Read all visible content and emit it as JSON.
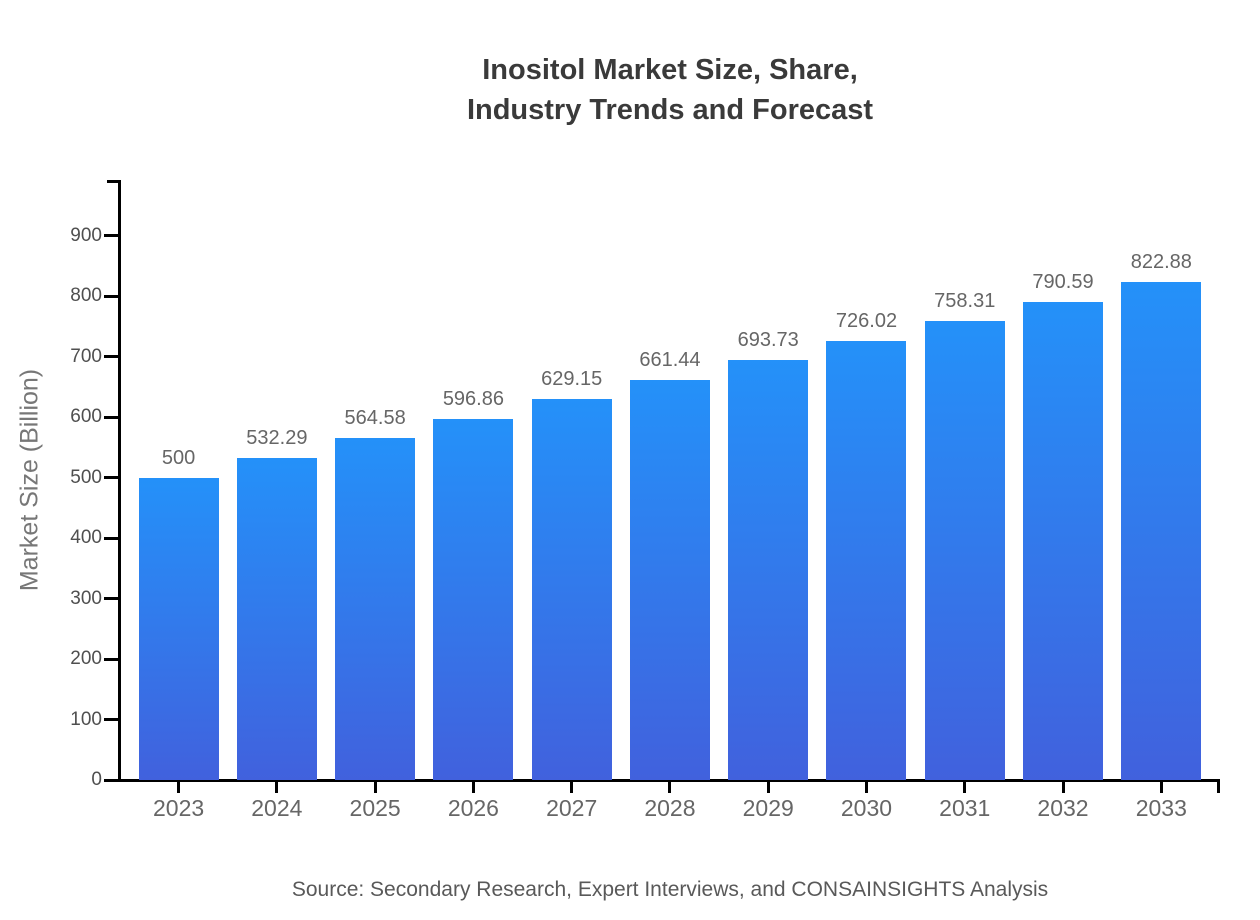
{
  "title": {
    "line1": "Inositol Market Size, Share,",
    "line2": "Industry Trends and Forecast"
  },
  "source_text": "Source: Secondary Research, Expert Interviews, and CONSAINSIGHTS Analysis",
  "colors": {
    "bar_gradient_top": "#2491f9",
    "bar_gradient_bottom": "#4161dd",
    "axis": "#000000",
    "title_text": "#3a3a3a",
    "y_tick_text": "#4f4f4f",
    "value_label_text": "#666666",
    "year_label_text": "#666666",
    "y_axis_title_text": "#777777",
    "source_text": "#595959"
  },
  "chart_data": {
    "type": "bar",
    "title": "Inositol Market Size, Share, Industry Trends and Forecast",
    "categories": [
      "2023",
      "2024",
      "2025",
      "2026",
      "2027",
      "2028",
      "2029",
      "2030",
      "2031",
      "2032",
      "2033"
    ],
    "values": [
      500,
      532.29,
      564.58,
      596.86,
      629.15,
      661.44,
      693.73,
      726.02,
      758.31,
      790.59,
      822.88
    ],
    "value_labels": [
      "500",
      "532.29",
      "564.58",
      "596.86",
      "629.15",
      "661.44",
      "693.73",
      "726.02",
      "758.31",
      "790.59",
      "822.88"
    ],
    "xlabel": "",
    "ylabel": "Market Size (Billion)",
    "ylim": [
      0,
      991
    ],
    "yticks": [
      0,
      100,
      200,
      300,
      400,
      500,
      600,
      700,
      800,
      900
    ],
    "grid": false,
    "legend": false,
    "bar_color_gradient": [
      "#2491f9",
      "#4161dd"
    ],
    "source": "Source: Secondary Research, Expert Interviews, and CONSAINSIGHTS Analysis"
  }
}
